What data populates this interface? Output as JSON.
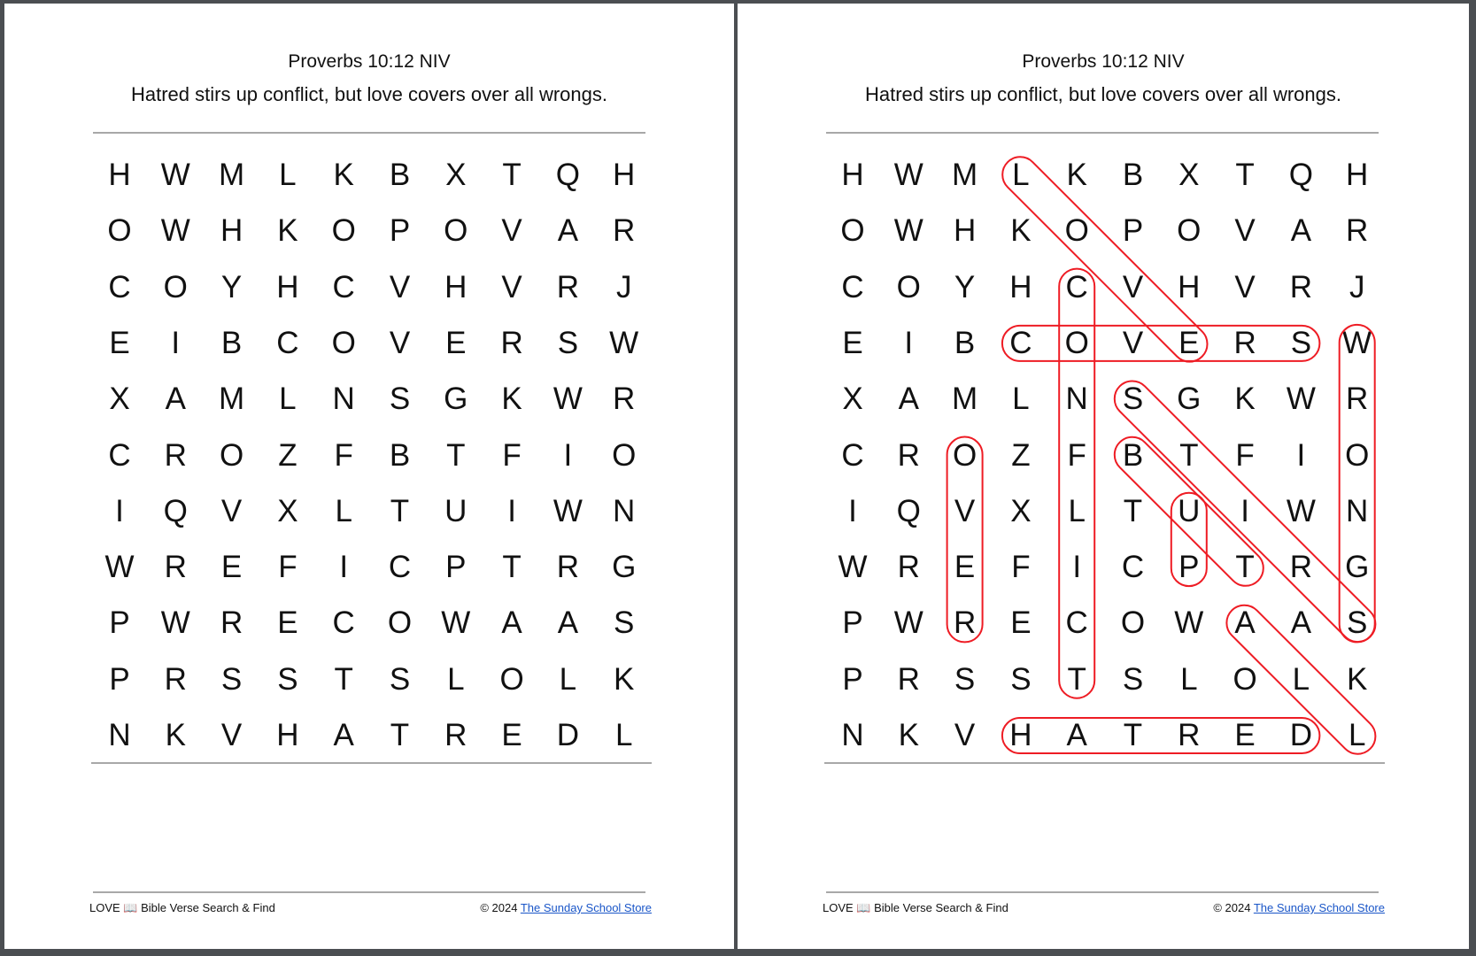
{
  "reference": "Proverbs 10:12 NIV",
  "verse": "Hatred stirs up conflict, but love covers over all wrongs.",
  "grid": [
    "HWMLKBXTQH",
    "OWHKOPOVAR",
    "COYHCVHVRJ",
    "EIBCOVERSW",
    "XAMLNSGKWR",
    "CROZFBTFIO",
    "IQVXLTUIWN",
    "WREFICPTRG",
    "PWRECOWAAS",
    "PRSSTSLOLK",
    "NKVHATREDL"
  ],
  "answers": [
    {
      "word": "LOVE",
      "start": [
        3,
        0
      ],
      "end": [
        6,
        3
      ]
    },
    {
      "word": "COVERS",
      "start": [
        3,
        3
      ],
      "end": [
        8,
        3
      ]
    },
    {
      "word": "CONFLICT",
      "start": [
        4,
        2
      ],
      "end": [
        4,
        9
      ]
    },
    {
      "word": "WRONGS",
      "start": [
        9,
        3
      ],
      "end": [
        9,
        8
      ]
    },
    {
      "word": "STIRS",
      "start": [
        5,
        4
      ],
      "end": [
        9,
        8
      ]
    },
    {
      "word": "BUT",
      "start": [
        5,
        5
      ],
      "end": [
        7,
        7
      ]
    },
    {
      "word": "UP",
      "start": [
        6,
        6
      ],
      "end": [
        6,
        7
      ]
    },
    {
      "word": "OVER",
      "start": [
        2,
        5
      ],
      "end": [
        2,
        8
      ]
    },
    {
      "word": "ALL",
      "start": [
        7,
        8
      ],
      "end": [
        9,
        10
      ]
    },
    {
      "word": "HATRED",
      "start": [
        3,
        10
      ],
      "end": [
        8,
        10
      ]
    }
  ],
  "highlight_color": "#ee1c24",
  "footer": {
    "title": "LOVE 📖 Bible Verse Search & Find",
    "copyright": "© 2024",
    "link": "The Sunday School Store"
  }
}
